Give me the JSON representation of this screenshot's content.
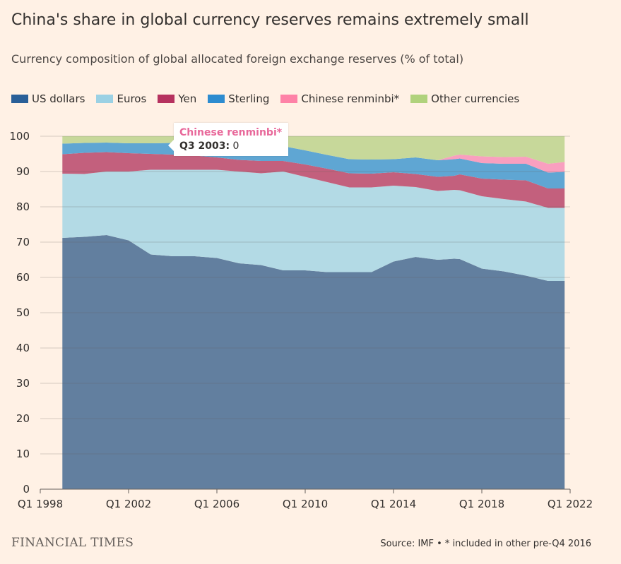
{
  "header": {
    "title": "China's share in global currency reserves remains extremely small",
    "subtitle": "Currency composition of global allocated foreign exchange reserves (% of total)"
  },
  "legend": [
    {
      "label": "US dollars",
      "color": "#295f98"
    },
    {
      "label": "Euros",
      "color": "#9bd1e4"
    },
    {
      "label": "Yen",
      "color": "#b6325f"
    },
    {
      "label": "Sterling",
      "color": "#2d8cd0"
    },
    {
      "label": "Chinese renminbi*",
      "color": "#fe82a7"
    },
    {
      "label": "Other currencies",
      "color": "#b0d27c"
    }
  ],
  "tooltip": {
    "series": "Chinese renminbi*",
    "label": "Q3 2003:",
    "value": "0"
  },
  "footer": {
    "brand": "FINANCIAL TIMES",
    "source": "Source: IMF • * included in other pre-Q4 2016"
  },
  "chart_data": {
    "type": "area",
    "stacked": true,
    "x_label_ticks": [
      "Q1 1998",
      "Q1 2002",
      "Q1 2006",
      "Q1 2010",
      "Q1 2014",
      "Q1 2018",
      "Q1 2022"
    ],
    "x_range": [
      1998.0,
      2022.0
    ],
    "ylim": [
      0,
      100
    ],
    "y_ticks": [
      0,
      10,
      20,
      30,
      40,
      50,
      60,
      70,
      80,
      90,
      100
    ],
    "grid": true,
    "legend_position": "top",
    "x": [
      1999.0,
      2000.0,
      2001.0,
      2002.0,
      2003.0,
      2004.0,
      2005.0,
      2006.0,
      2007.0,
      2008.0,
      2009.0,
      2010.0,
      2011.0,
      2012.0,
      2013.0,
      2014.0,
      2015.0,
      2016.0,
      2016.75,
      2017.0,
      2018.0,
      2019.0,
      2020.0,
      2021.0,
      2021.75
    ],
    "series": [
      {
        "name": "US dollars",
        "values": [
          71.2,
          71.5,
          72.0,
          70.5,
          66.5,
          66.0,
          66.0,
          65.5,
          64.0,
          63.5,
          62.0,
          62.0,
          61.5,
          61.5,
          61.5,
          64.5,
          65.8,
          65.0,
          65.3,
          65.2,
          62.5,
          61.7,
          60.5,
          59.0,
          59.0
        ]
      },
      {
        "name": "Euros",
        "values": [
          18.2,
          17.8,
          18.0,
          19.5,
          24.0,
          24.5,
          24.5,
          25.0,
          26.0,
          26.0,
          28.0,
          26.5,
          25.5,
          24.0,
          24.0,
          21.5,
          19.8,
          19.5,
          19.5,
          19.5,
          20.5,
          20.5,
          21.0,
          20.7,
          20.7
        ]
      },
      {
        "name": "Yen",
        "values": [
          5.5,
          6.0,
          5.5,
          5.2,
          4.5,
          4.3,
          4.0,
          3.5,
          3.3,
          3.5,
          3.0,
          3.5,
          3.8,
          4.0,
          3.9,
          3.8,
          3.7,
          4.0,
          4.0,
          4.5,
          5.0,
          5.5,
          6.0,
          5.5,
          5.5
        ]
      },
      {
        "name": "Sterling",
        "values": [
          3.0,
          2.8,
          2.7,
          2.8,
          3.0,
          3.3,
          3.6,
          4.4,
          4.7,
          4.5,
          4.2,
          4.0,
          3.9,
          4.0,
          4.0,
          3.7,
          4.7,
          4.7,
          4.7,
          4.5,
          4.4,
          4.5,
          4.7,
          4.5,
          4.7
        ]
      },
      {
        "name": "Chinese renminbi*",
        "values": [
          0,
          0,
          0,
          0,
          0,
          0,
          0,
          0,
          0,
          0,
          0,
          0,
          0,
          0,
          0,
          0,
          0,
          0,
          1.0,
          1.1,
          1.9,
          1.9,
          2.0,
          2.5,
          2.8
        ]
      },
      {
        "name": "Other currencies",
        "values": [
          2.1,
          1.9,
          1.8,
          2.0,
          2.0,
          1.9,
          1.9,
          1.6,
          2.0,
          2.5,
          2.8,
          4.0,
          5.3,
          6.5,
          6.6,
          6.5,
          6.0,
          6.8,
          5.5,
          5.2,
          5.7,
          5.9,
          5.8,
          7.8,
          7.3
        ]
      }
    ]
  }
}
